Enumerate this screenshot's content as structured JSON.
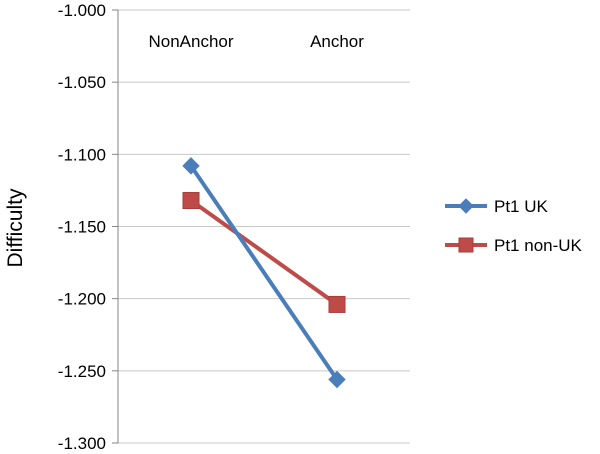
{
  "chart_data": {
    "type": "line",
    "categories": [
      "NonAnchor",
      "Anchor"
    ],
    "ylabel": "Difficulty",
    "ylim": [
      -1.3,
      -1.0
    ],
    "yticks": [
      "-1.000",
      "-1.050",
      "-1.100",
      "-1.150",
      "-1.200",
      "-1.250",
      "-1.300"
    ],
    "grid": true,
    "legend": "right",
    "series": [
      {
        "name": "Pt1 UK",
        "values": [
          -1.108,
          -1.256
        ],
        "color": "#4a7ebb",
        "marker": "diamond"
      },
      {
        "name": "Pt1 non-UK",
        "values": [
          -1.132,
          -1.204
        ],
        "color": "#be4b48",
        "marker": "square"
      }
    ]
  }
}
